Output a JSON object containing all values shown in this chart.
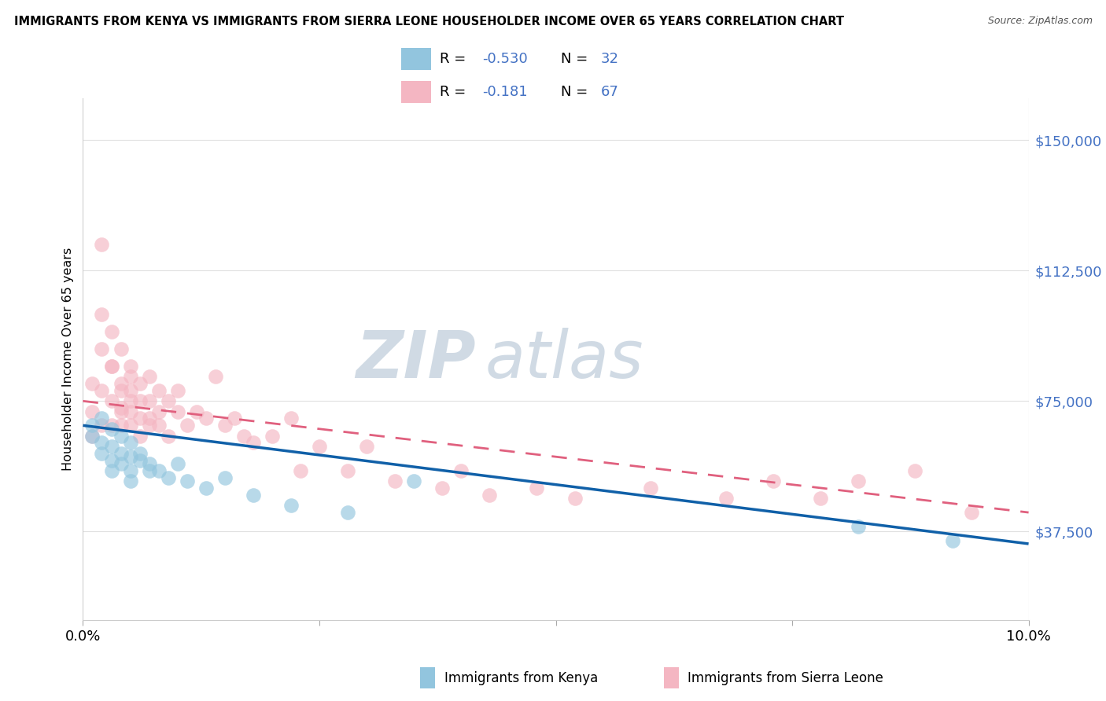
{
  "title": "IMMIGRANTS FROM KENYA VS IMMIGRANTS FROM SIERRA LEONE HOUSEHOLDER INCOME OVER 65 YEARS CORRELATION CHART",
  "source": "Source: ZipAtlas.com",
  "ylabel": "Householder Income Over 65 years",
  "legend_kenya_R": "-0.530",
  "legend_kenya_N": "32",
  "legend_kenya_label": "Immigrants from Kenya",
  "legend_sierra_R": "-0.181",
  "legend_sierra_N": "67",
  "legend_sierra_label": "Immigrants from Sierra Leone",
  "color_kenya": "#92c5de",
  "color_sierra": "#f4b6c2",
  "color_kenya_line": "#1060a8",
  "color_sierra_line": "#e0607e",
  "ytick_labels": [
    "$37,500",
    "$75,000",
    "$112,500",
    "$150,000"
  ],
  "ytick_values": [
    37500,
    75000,
    112500,
    150000
  ],
  "ymin": 12000,
  "ymax": 162000,
  "xmin": 0.0,
  "xmax": 0.1,
  "watermark_zip": "ZIP",
  "watermark_atlas": "atlas",
  "kenya_x": [
    0.001,
    0.001,
    0.002,
    0.002,
    0.002,
    0.003,
    0.003,
    0.003,
    0.003,
    0.004,
    0.004,
    0.004,
    0.005,
    0.005,
    0.005,
    0.005,
    0.006,
    0.006,
    0.007,
    0.007,
    0.008,
    0.009,
    0.01,
    0.011,
    0.013,
    0.015,
    0.018,
    0.022,
    0.028,
    0.035,
    0.082,
    0.092
  ],
  "kenya_y": [
    68000,
    65000,
    70000,
    63000,
    60000,
    67000,
    62000,
    58000,
    55000,
    65000,
    60000,
    57000,
    63000,
    59000,
    55000,
    52000,
    60000,
    58000,
    57000,
    55000,
    55000,
    53000,
    57000,
    52000,
    50000,
    53000,
    48000,
    45000,
    43000,
    52000,
    39000,
    35000
  ],
  "sierra_x": [
    0.001,
    0.001,
    0.001,
    0.002,
    0.002,
    0.002,
    0.002,
    0.002,
    0.003,
    0.003,
    0.003,
    0.003,
    0.003,
    0.004,
    0.004,
    0.004,
    0.004,
    0.004,
    0.004,
    0.005,
    0.005,
    0.005,
    0.005,
    0.005,
    0.005,
    0.006,
    0.006,
    0.006,
    0.006,
    0.007,
    0.007,
    0.007,
    0.007,
    0.008,
    0.008,
    0.008,
    0.009,
    0.009,
    0.01,
    0.01,
    0.011,
    0.012,
    0.013,
    0.014,
    0.015,
    0.016,
    0.017,
    0.018,
    0.02,
    0.022,
    0.023,
    0.025,
    0.028,
    0.03,
    0.033,
    0.038,
    0.04,
    0.043,
    0.048,
    0.052,
    0.06,
    0.068,
    0.073,
    0.078,
    0.082,
    0.088,
    0.094
  ],
  "sierra_y": [
    65000,
    72000,
    80000,
    120000,
    90000,
    100000,
    78000,
    68000,
    95000,
    85000,
    75000,
    68000,
    85000,
    80000,
    73000,
    68000,
    90000,
    78000,
    72000,
    85000,
    78000,
    72000,
    68000,
    82000,
    75000,
    80000,
    75000,
    70000,
    65000,
    82000,
    75000,
    70000,
    68000,
    78000,
    72000,
    68000,
    75000,
    65000,
    78000,
    72000,
    68000,
    72000,
    70000,
    82000,
    68000,
    70000,
    65000,
    63000,
    65000,
    70000,
    55000,
    62000,
    55000,
    62000,
    52000,
    50000,
    55000,
    48000,
    50000,
    47000,
    50000,
    47000,
    52000,
    47000,
    52000,
    55000,
    43000
  ]
}
